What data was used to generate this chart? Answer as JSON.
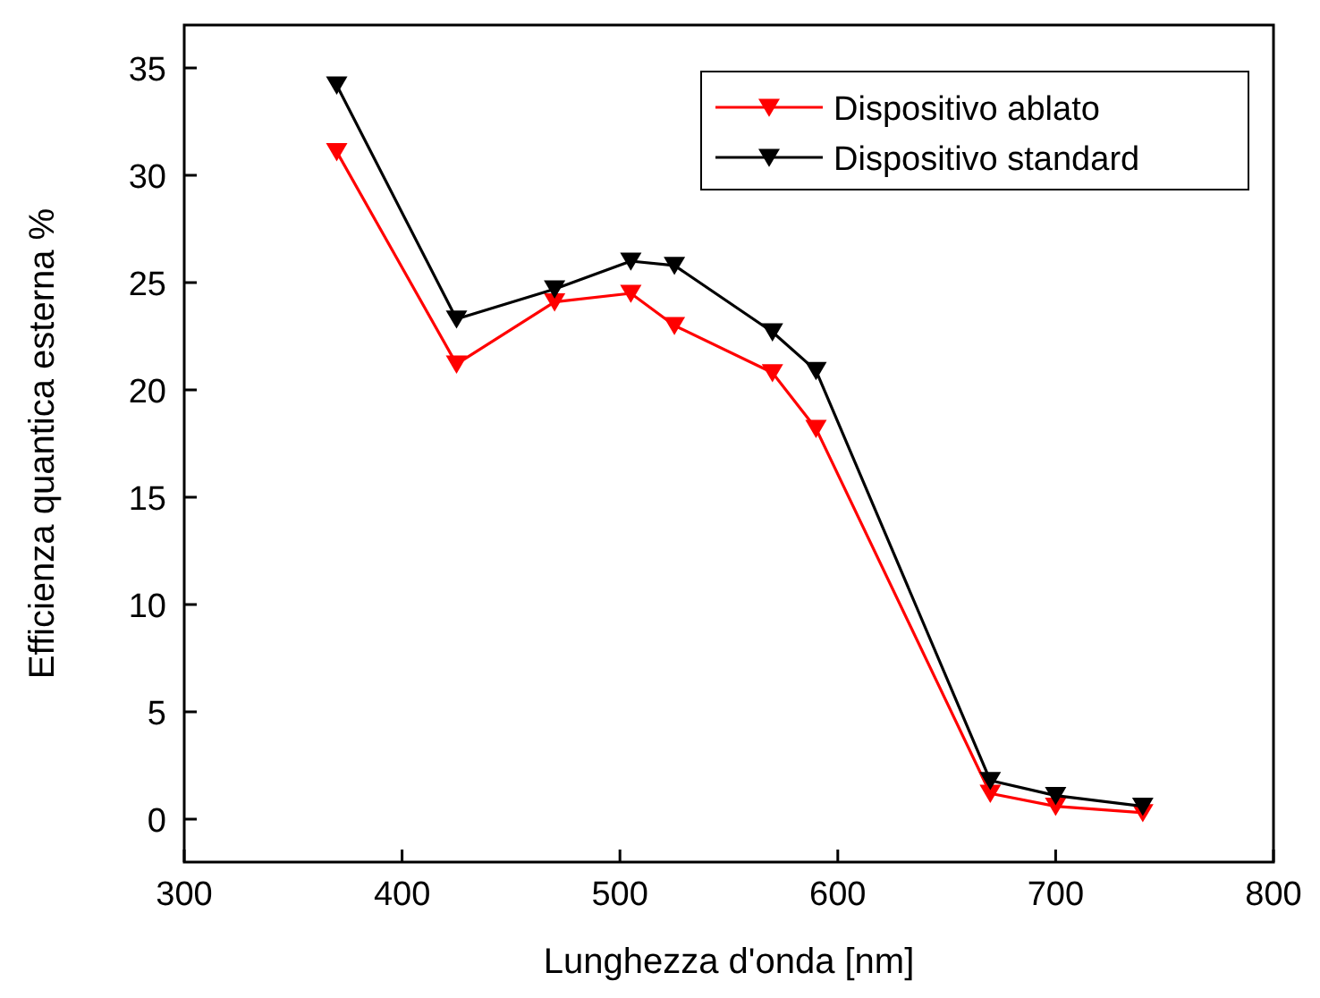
{
  "chart_data": {
    "type": "line",
    "xlabel": "Lunghezza d'onda [nm]",
    "ylabel": "Efficienza quantica esterna %",
    "x": [
      370,
      425,
      470,
      505,
      525,
      570,
      590,
      670,
      700,
      740
    ],
    "series": [
      {
        "name": "Dispositivo ablato",
        "color": "#ff0000",
        "values": [
          31.1,
          21.2,
          24.1,
          24.5,
          23.0,
          20.8,
          18.2,
          1.2,
          0.6,
          0.3
        ]
      },
      {
        "name": "Dispositivo standard",
        "color": "#000000",
        "values": [
          34.2,
          23.3,
          24.7,
          26.0,
          25.8,
          22.7,
          20.9,
          1.8,
          1.1,
          0.6
        ]
      }
    ],
    "xlim": [
      300,
      800
    ],
    "xticks": [
      300,
      400,
      500,
      600,
      700,
      800
    ],
    "ylim": [
      -2,
      37
    ],
    "yticks": [
      0,
      5,
      10,
      15,
      20,
      25,
      30,
      35
    ],
    "grid": false,
    "legend": "top right",
    "marker": "triangle",
    "line_style": "solid"
  }
}
